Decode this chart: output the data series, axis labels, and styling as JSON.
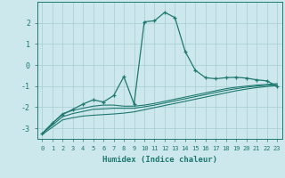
{
  "xlabel": "Humidex (Indice chaleur)",
  "ylabel": "",
  "bg_color": "#cce8ec",
  "line_color": "#1e7870",
  "grid_color": "#a8cdd4",
  "series": {
    "main": {
      "x": [
        0,
        1,
        2,
        3,
        4,
        5,
        6,
        7,
        8,
        9,
        10,
        11,
        12,
        13,
        14,
        15,
        16,
        17,
        18,
        19,
        20,
        21,
        22,
        23
      ],
      "y": [
        -3.25,
        -2.75,
        -2.35,
        -2.1,
        -1.85,
        -1.65,
        -1.75,
        -1.45,
        -0.55,
        -1.85,
        2.05,
        2.1,
        2.5,
        2.25,
        0.65,
        -0.25,
        -0.6,
        -0.65,
        -0.6,
        -0.58,
        -0.62,
        -0.7,
        -0.75,
        -1.0
      ]
    },
    "lower1": {
      "x": [
        0,
        2,
        3,
        4,
        5,
        6,
        7,
        8,
        9,
        10,
        11,
        12,
        13,
        14,
        15,
        16,
        17,
        18,
        19,
        20,
        21,
        22,
        23
      ],
      "y": [
        -3.25,
        -2.3,
        -2.15,
        -2.05,
        -1.95,
        -1.9,
        -1.9,
        -1.95,
        -1.95,
        -1.9,
        -1.82,
        -1.72,
        -1.62,
        -1.52,
        -1.42,
        -1.32,
        -1.22,
        -1.12,
        -1.05,
        -1.0,
        -0.95,
        -0.92,
        -0.88
      ]
    },
    "lower2": {
      "x": [
        0,
        2,
        3,
        4,
        5,
        6,
        7,
        8,
        9,
        10,
        11,
        12,
        13,
        14,
        15,
        16,
        17,
        18,
        19,
        20,
        21,
        22,
        23
      ],
      "y": [
        -3.25,
        -2.45,
        -2.3,
        -2.2,
        -2.1,
        -2.08,
        -2.05,
        -2.05,
        -2.05,
        -1.98,
        -1.9,
        -1.8,
        -1.7,
        -1.6,
        -1.5,
        -1.4,
        -1.3,
        -1.2,
        -1.12,
        -1.05,
        -1.0,
        -0.96,
        -0.92
      ]
    },
    "lower3": {
      "x": [
        0,
        2,
        3,
        4,
        5,
        6,
        7,
        8,
        9,
        10,
        11,
        12,
        13,
        14,
        15,
        16,
        17,
        18,
        19,
        20,
        21,
        22,
        23
      ],
      "y": [
        -3.3,
        -2.6,
        -2.5,
        -2.42,
        -2.38,
        -2.35,
        -2.32,
        -2.28,
        -2.22,
        -2.12,
        -2.02,
        -1.92,
        -1.82,
        -1.72,
        -1.62,
        -1.52,
        -1.42,
        -1.32,
        -1.22,
        -1.14,
        -1.07,
        -1.02,
        -0.97
      ]
    }
  },
  "xlim": [
    -0.5,
    23.5
  ],
  "ylim": [
    -3.5,
    3.0
  ],
  "yticks": [
    -3,
    -2,
    -1,
    0,
    1,
    2
  ],
  "xticks": [
    0,
    1,
    2,
    3,
    4,
    5,
    6,
    7,
    8,
    9,
    10,
    11,
    12,
    13,
    14,
    15,
    16,
    17,
    18,
    19,
    20,
    21,
    22,
    23
  ]
}
